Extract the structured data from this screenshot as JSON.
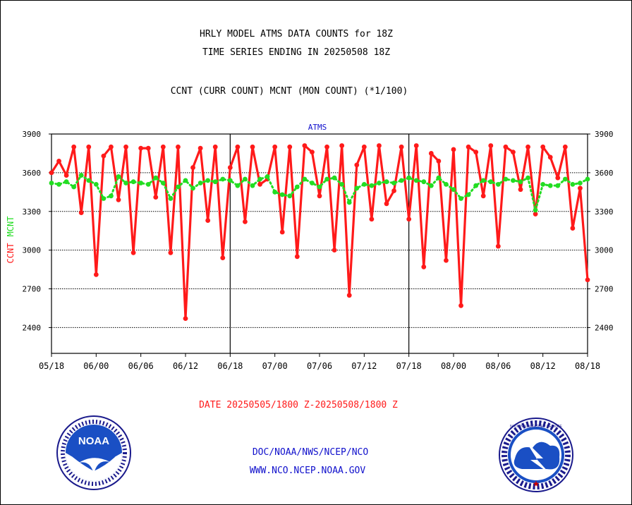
{
  "header": {
    "title_line1": "HRLY MODEL ATMS DATA COUNTS for 18Z",
    "title_line2": "TIME SERIES ENDING IN 20250508 18Z",
    "subtitle": "CCNT (CURR COUNT) MCNT (MON COUNT) (*1/100)"
  },
  "footer": {
    "date_range": "DATE 20250505/1800 Z-20250508/1800 Z",
    "org_line": "DOC/NOAA/NWS/NCEP/NCO",
    "url_line": "WWW.NCO.NCEP.NOAA.GOV"
  },
  "logos": {
    "noaa_text": "NOAA",
    "nws_ring_text": "NATIONAL WEATHER SERVICE"
  },
  "colors": {
    "ccnt": "#ff1a1a",
    "mcnt": "#22dd22",
    "title_blue": "#1010cc",
    "axis": "#000000"
  },
  "chart_data": {
    "type": "line",
    "title": "ATMS",
    "ylabel_ccnt": "CCNT",
    "ylabel_mcnt": "MCNT",
    "ylim": [
      2200,
      3900
    ],
    "yticks": [
      2400,
      2700,
      3000,
      3300,
      3600,
      3900
    ],
    "xlim": [
      0,
      72
    ],
    "grid": true,
    "x_ticks": [
      {
        "x": 0,
        "label": "05/18"
      },
      {
        "x": 6,
        "label": "06/00"
      },
      {
        "x": 12,
        "label": "06/06"
      },
      {
        "x": 18,
        "label": "06/12"
      },
      {
        "x": 24,
        "label": "06/18"
      },
      {
        "x": 30,
        "label": "07/00"
      },
      {
        "x": 36,
        "label": "07/06"
      },
      {
        "x": 42,
        "label": "07/12"
      },
      {
        "x": 48,
        "label": "07/18"
      },
      {
        "x": 54,
        "label": "08/00"
      },
      {
        "x": 60,
        "label": "08/06"
      },
      {
        "x": 66,
        "label": "08/12"
      },
      {
        "x": 72,
        "label": "08/18"
      }
    ],
    "series": [
      {
        "name": "CCNT",
        "color": "#ff1a1a",
        "values": [
          3600,
          3690,
          3580,
          3800,
          3290,
          3800,
          2810,
          3730,
          3800,
          3390,
          3800,
          2980,
          3790,
          3790,
          3410,
          3800,
          2980,
          3800,
          2470,
          3640,
          3790,
          3230,
          3800,
          2940,
          3640,
          3800,
          3220,
          3800,
          3510,
          3550,
          3800,
          3140,
          3800,
          2950,
          3810,
          3760,
          3420,
          3800,
          3000,
          3810,
          2650,
          3660,
          3800,
          3240,
          3810,
          3360,
          3460,
          3800,
          3240,
          3810,
          2870,
          3750,
          3690,
          2920,
          3780,
          2570,
          3800,
          3760,
          3420,
          3810,
          3030,
          3800,
          3760,
          3470,
          3800,
          3280,
          3800,
          3720,
          3560,
          3800,
          3170,
          3480,
          2770
        ],
        "x_start": 0,
        "x_step": 1
      },
      {
        "name": "MCNT",
        "color": "#22dd22",
        "values": [
          3520,
          3510,
          3530,
          3490,
          3580,
          3540,
          3510,
          3400,
          3420,
          3570,
          3520,
          3530,
          3520,
          3510,
          3560,
          3520,
          3400,
          3490,
          3540,
          3480,
          3520,
          3540,
          3530,
          3550,
          3540,
          3500,
          3550,
          3500,
          3550,
          3570,
          3450,
          3430,
          3420,
          3490,
          3550,
          3520,
          3490,
          3550,
          3560,
          3510,
          3370,
          3480,
          3510,
          3500,
          3520,
          3530,
          3520,
          3540,
          3560,
          3540,
          3530,
          3500,
          3560,
          3510,
          3470,
          3400,
          3430,
          3500,
          3540,
          3530,
          3510,
          3550,
          3540,
          3530,
          3560,
          3310,
          3510,
          3500,
          3500,
          3550,
          3510,
          3520,
          3550
        ],
        "x_start": 0,
        "x_step": 1
      }
    ]
  }
}
